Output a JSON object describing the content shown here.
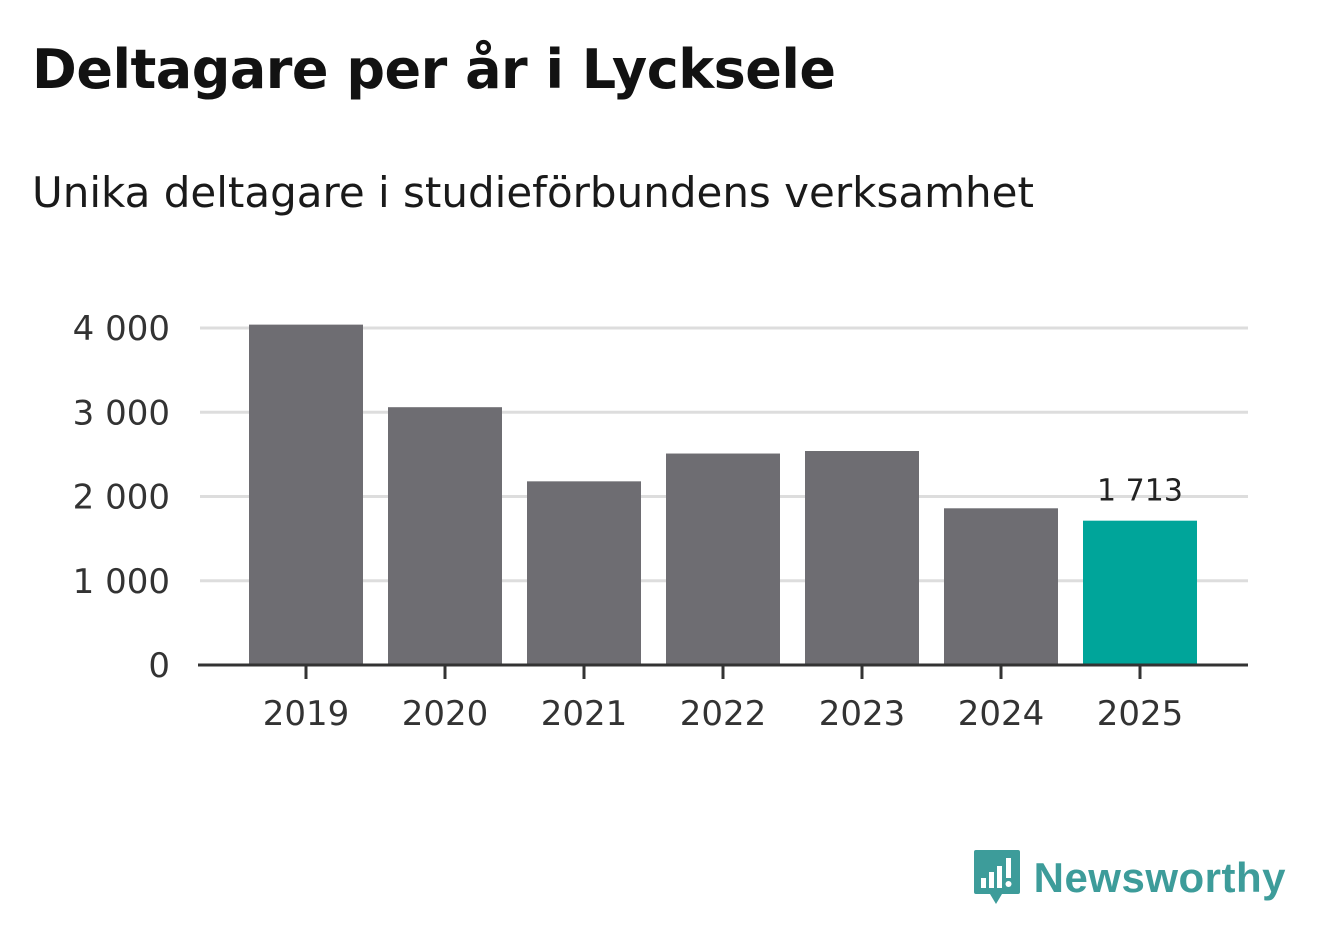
{
  "colors": {
    "bar": "#6e6d72",
    "highlight": "#00a59a",
    "grid": "#dddddd",
    "axis": "#333333",
    "brand": "#3d9c9a"
  },
  "brand": {
    "name": "Newsworthy",
    "icon": "newsworthy-logo-icon"
  },
  "chart_data": {
    "type": "bar",
    "title": "Deltagare per år i Lycksele",
    "subtitle": "Unika deltagare i studieförbundens verksamhet",
    "xlabel": "",
    "ylabel": "",
    "categories": [
      "2019",
      "2020",
      "2021",
      "2022",
      "2023",
      "2024",
      "2025"
    ],
    "values": [
      4040,
      3060,
      2180,
      2510,
      2540,
      1860,
      1713
    ],
    "highlight_index": 6,
    "value_labels": {
      "6": "1 713"
    },
    "ylim": [
      0,
      4000
    ],
    "yticks": [
      0,
      1000,
      2000,
      3000,
      4000
    ],
    "ytick_labels": [
      "0",
      "1 000",
      "2 000",
      "3 000",
      "4 000"
    ],
    "grid": true
  }
}
